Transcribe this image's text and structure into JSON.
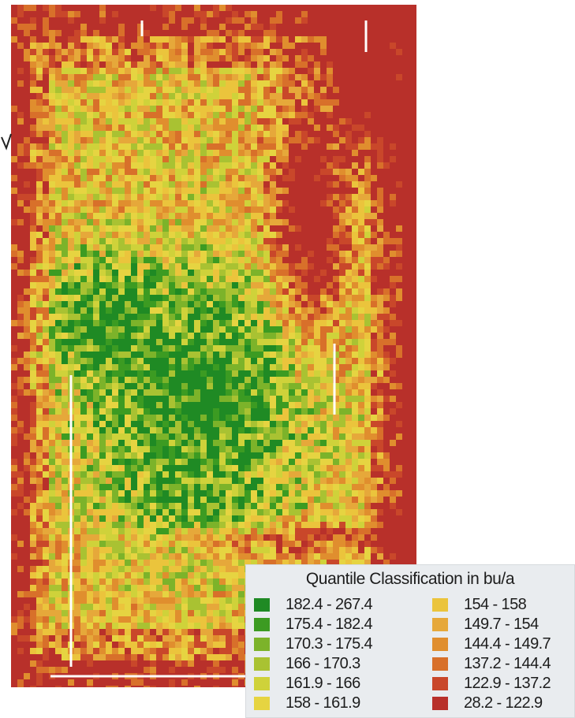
{
  "map": {
    "description_type": "yield-map",
    "palette": [
      "#1f8a24",
      "#3c9b22",
      "#7cb32a",
      "#a9c232",
      "#cfd23a",
      "#e6d441",
      "#ebc43c",
      "#e6a83a",
      "#e08e2e",
      "#d8702a",
      "#c9472a",
      "#b8302a"
    ]
  },
  "legend": {
    "title": "Quantile Classification in bu/a",
    "items": [
      {
        "label": "182.4 - 267.4",
        "color": "#1f8a24"
      },
      {
        "label": "175.4 - 182.4",
        "color": "#3c9b22"
      },
      {
        "label": "170.3 - 175.4",
        "color": "#7cb32a"
      },
      {
        "label": "166 - 170.3",
        "color": "#a9c232"
      },
      {
        "label": "161.9 - 166",
        "color": "#cfd23a"
      },
      {
        "label": "158 - 161.9",
        "color": "#e6d441"
      },
      {
        "label": "154 - 158",
        "color": "#ebc43c"
      },
      {
        "label": "149.7 - 154",
        "color": "#e6a83a"
      },
      {
        "label": "144.4 - 149.7",
        "color": "#e08e2e"
      },
      {
        "label": "137.2 - 144.4",
        "color": "#d8702a"
      },
      {
        "label": "122.9 - 137.2",
        "color": "#c9472a"
      },
      {
        "label": "28.2 - 122.9",
        "color": "#b8302a"
      }
    ]
  }
}
